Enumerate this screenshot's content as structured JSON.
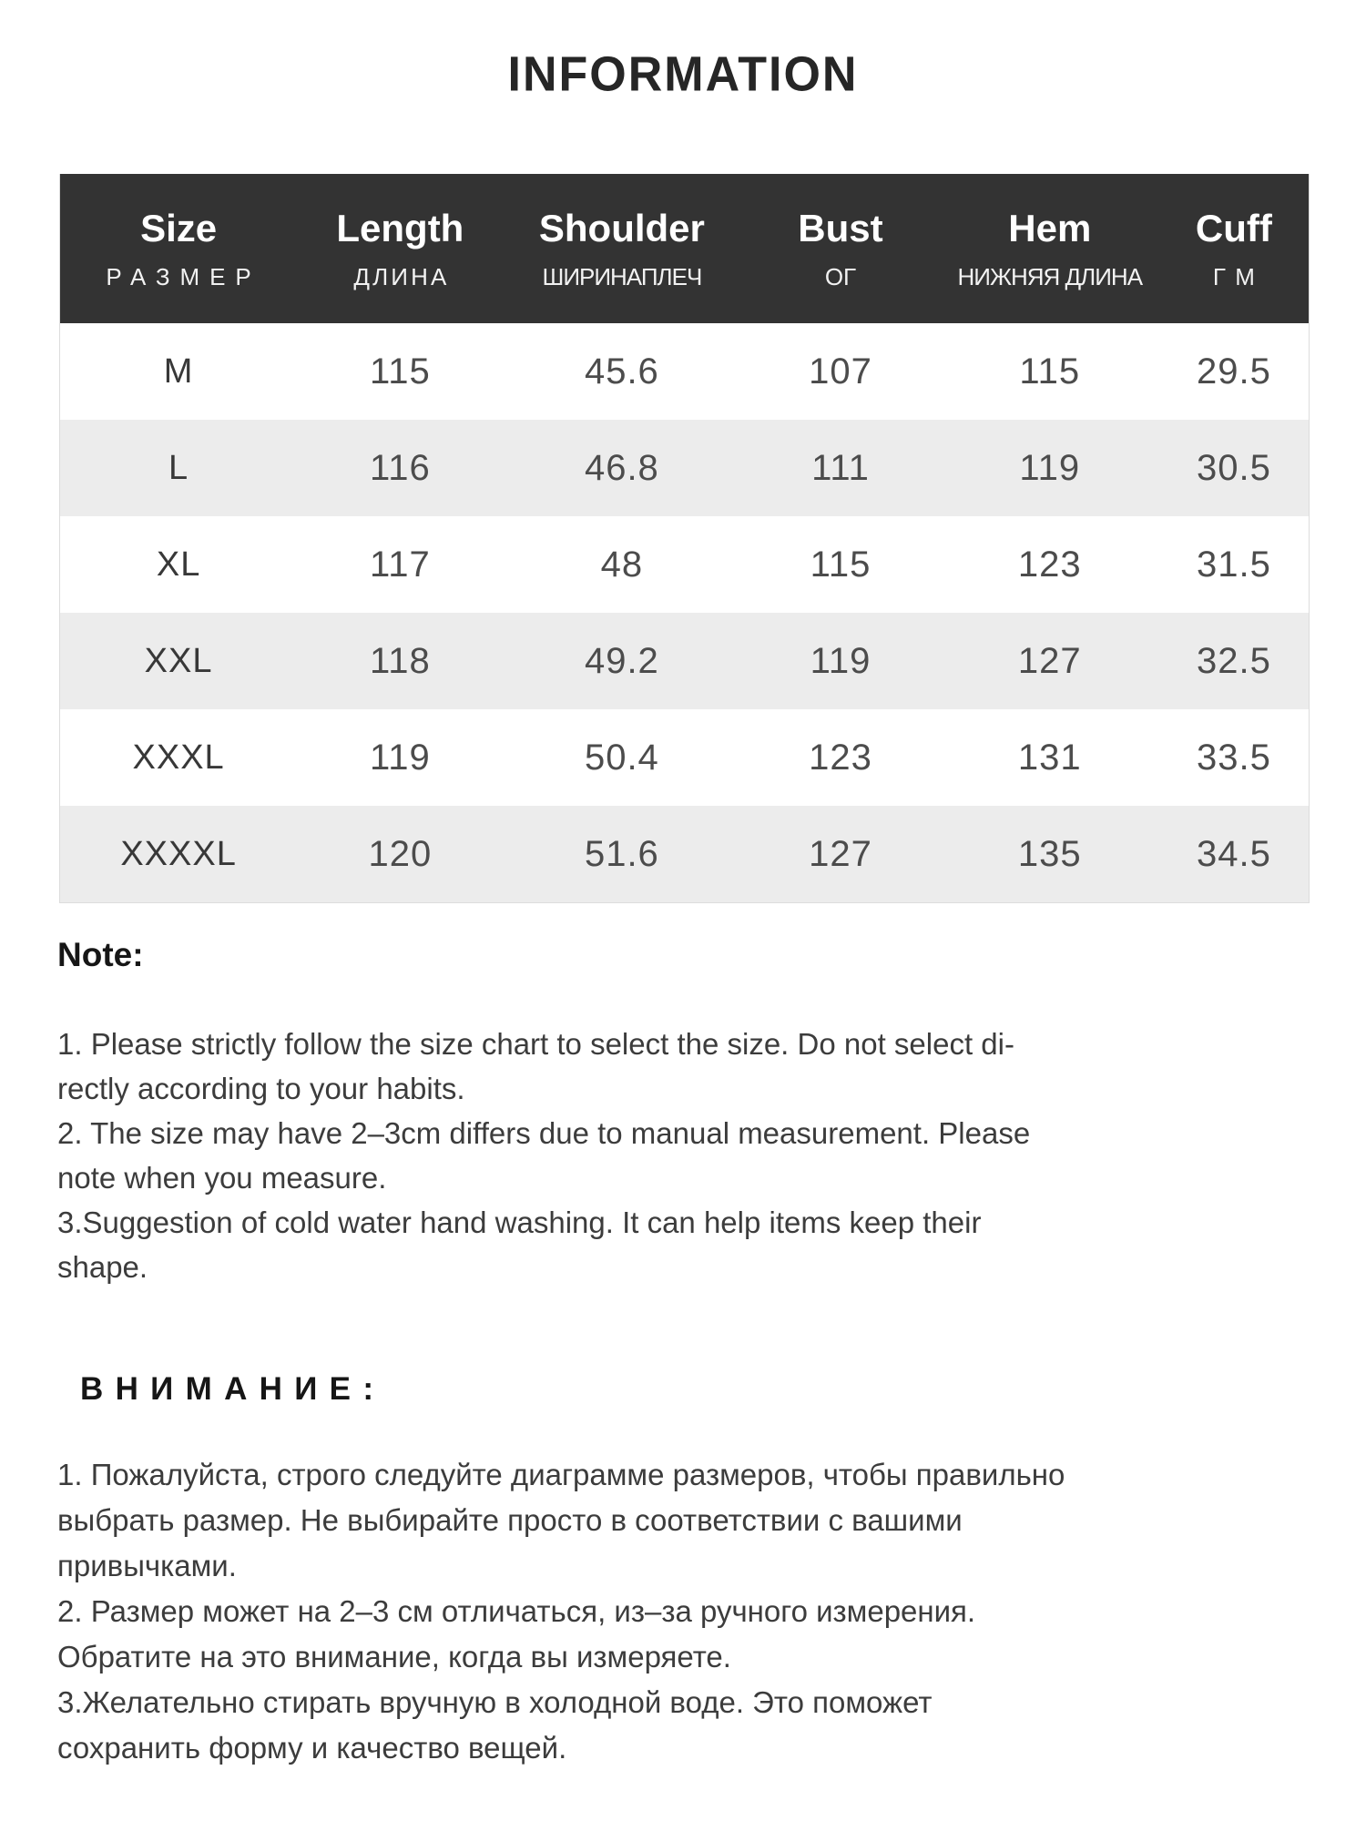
{
  "page": {
    "title": "INFORMATION"
  },
  "colors": {
    "table_header_bg": "#333333",
    "zebra_row_bg": "#ececec"
  },
  "size_table": {
    "columns": [
      {
        "label": "Size",
        "sublabel": "РАЗМЕР"
      },
      {
        "label": "Length",
        "sublabel": "ДЛИНА"
      },
      {
        "label": "Shoulder",
        "sublabel": "ШИРИНАПЛЕЧ"
      },
      {
        "label": "Bust",
        "sublabel": "ОГ"
      },
      {
        "label": "Hem",
        "sublabel": "НИЖНЯЯ ДЛИНА"
      },
      {
        "label": "Cuff",
        "sublabel": "ГМ"
      }
    ],
    "rows": [
      {
        "size": "M",
        "length": "115",
        "shoulder": "45.6",
        "bust": "107",
        "hem": "115",
        "cuff": "29.5"
      },
      {
        "size": "L",
        "length": "116",
        "shoulder": "46.8",
        "bust": "111",
        "hem": "119",
        "cuff": "30.5"
      },
      {
        "size": "XL",
        "length": "117",
        "shoulder": "48",
        "bust": "115",
        "hem": "123",
        "cuff": "31.5"
      },
      {
        "size": "XXL",
        "length": "118",
        "shoulder": "49.2",
        "bust": "119",
        "hem": "127",
        "cuff": "32.5"
      },
      {
        "size": "XXXL",
        "length": "119",
        "shoulder": "50.4",
        "bust": "123",
        "hem": "131",
        "cuff": "33.5"
      },
      {
        "size": "XXXXL",
        "length": "120",
        "shoulder": "51.6",
        "bust": "127",
        "hem": "135",
        "cuff": "34.5"
      }
    ]
  },
  "notes_en": {
    "heading": "Note:",
    "body": "1. Please strictly follow the size chart  to select the size. Do not select di-\nrectly according to your habits.\n2. The size may have 2–3cm differs due to manual measurement. Please\nnote when you measure.\n3.Suggestion of cold water hand washing. It can help items keep their\nshape."
  },
  "notes_ru": {
    "heading": "ВНИМАНИЕ:",
    "body": "1. Пожалуйста, строго следуйте диаграмме размеров, чтобы правильно\nвыбрать размер. Не выбирайте просто в соответствии с вашими\nпривычками.\n2. Размер может на 2–3 см отличаться, из–за ручного измерения.\nОбратите на это внимание, когда вы измеряете.\n3.Желательно стирать вручную в холодной воде. Это поможет\nсохранить форму и качество вещей."
  }
}
